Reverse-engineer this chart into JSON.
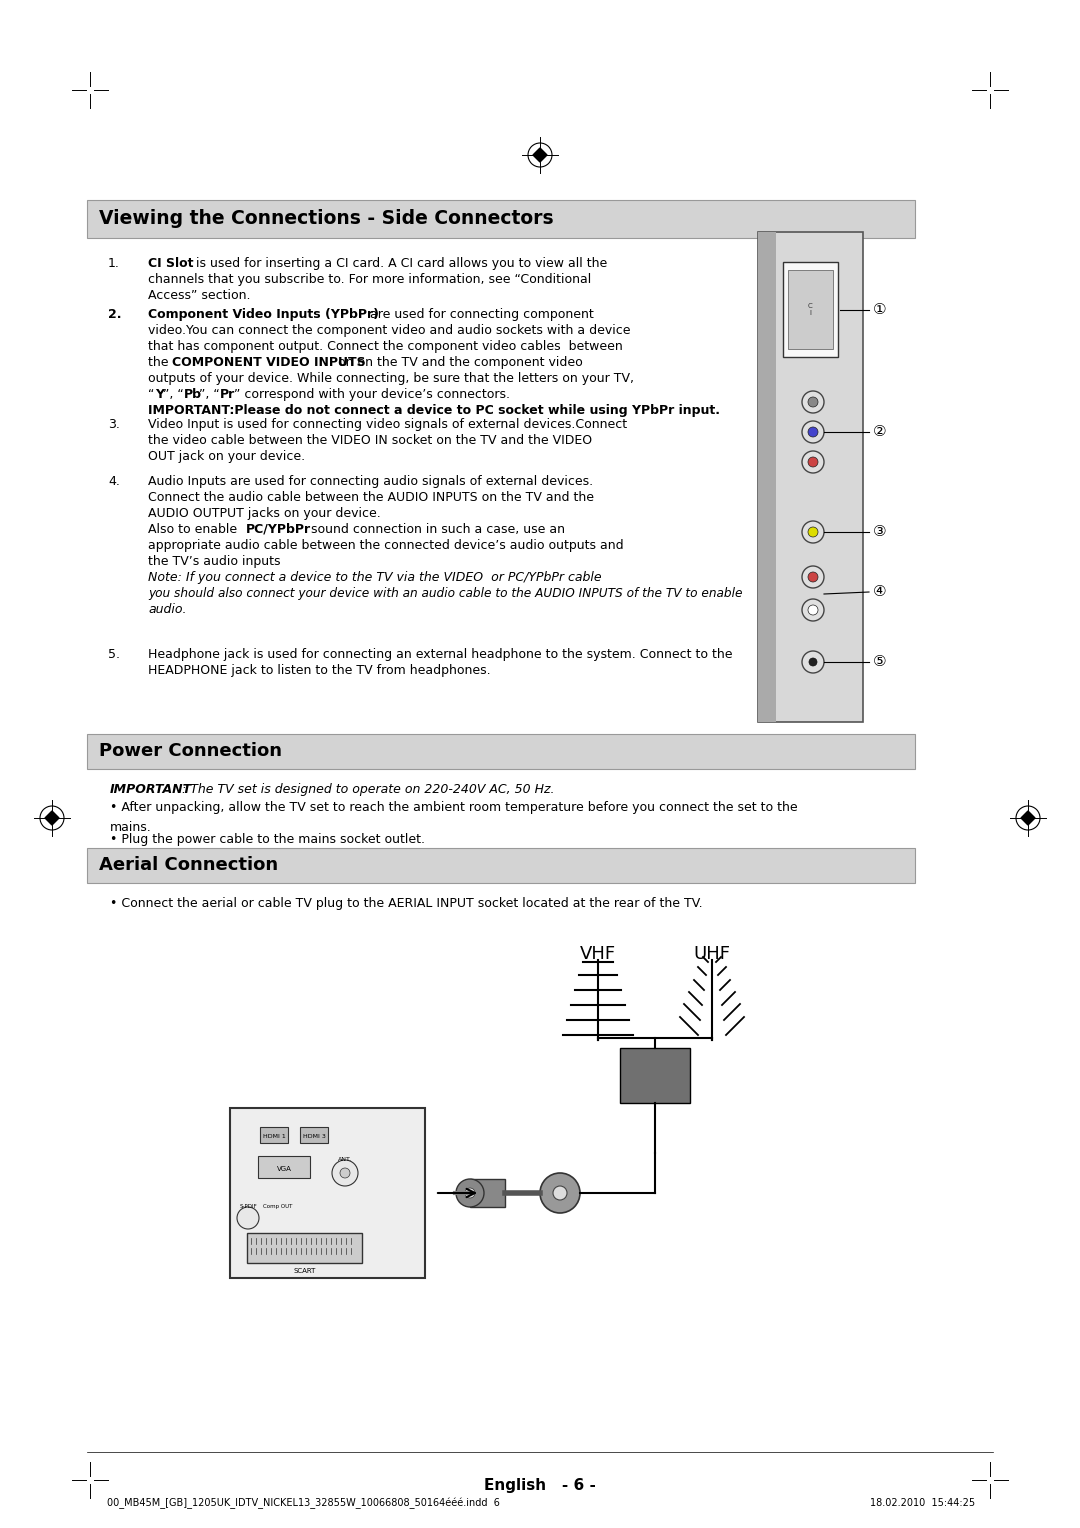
{
  "page_bg": "#ffffff",
  "title1": "Viewing the Connections - Side Connectors",
  "title2": "Power Connection",
  "title3": "Aerial Connection",
  "section_bg": "#d3d3d3",
  "text_color": "#000000",
  "footer_text": "English   - 6 -",
  "footer_file": "00_MB45M_[GB]_1205UK_IDTV_NICKEL13_32855W_10066808_50164ééé.indd  6",
  "footer_date": "18.02.2010  15:44:25",
  "item2_important": "IMPORTANT:Please do not connect a device to PC socket while using YPbPr input.",
  "power_important": "IMPORTANT",
  "power_text1": ": The TV set is designed to operate on 220-240V AC, 50 Hz.",
  "power_text2": "After unpacking, allow the TV set to reach the ambient room temperature before you connect the set to the",
  "power_text3": "mains.",
  "power_text4": "Plug the power cable to the mains socket outlet.",
  "aerial_text": "Connect the aerial or cable TV plug to the AERIAL INPUT socket located at the rear of the TV.",
  "vhf_label": "VHF",
  "uhf_label": "UHF"
}
